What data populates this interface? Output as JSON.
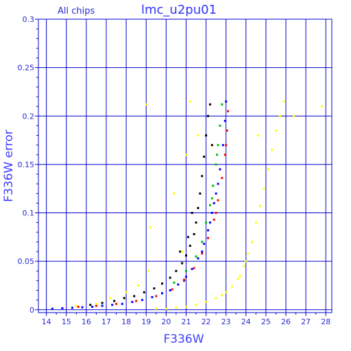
{
  "chart_data": {
    "type": "scatter",
    "title": "lmc_u2pu01",
    "subtitle": "All chips",
    "xlabel": "F336W",
    "ylabel": "F336W error",
    "xlim": [
      13.6,
      28.3
    ],
    "ylim": [
      -0.003,
      0.3
    ],
    "x_ticks": [
      "14",
      "15",
      "16",
      "17",
      "18",
      "19",
      "20",
      "21",
      "22",
      "23",
      "24",
      "25",
      "26",
      "27",
      "28"
    ],
    "y_ticks": [
      "0",
      "0.05",
      "0.1",
      "0.15",
      "0.2",
      "0.25",
      "0.3"
    ],
    "x_tick_values": [
      14,
      15,
      16,
      17,
      18,
      19,
      20,
      21,
      22,
      23,
      24,
      25,
      26,
      27,
      28
    ],
    "y_tick_values": [
      0,
      0.05,
      0.1,
      0.15,
      0.2,
      0.25,
      0.3
    ],
    "grid": true,
    "colors": {
      "grid": "#0000cc",
      "axis": "#0000cc",
      "text": "#2a2ad0",
      "series": [
        "#0000ff",
        "#000000",
        "#ff0000",
        "#00bb00",
        "#ffff00"
      ]
    },
    "series": [
      {
        "color": "#0000ff",
        "points": [
          [
            14.3,
            0.001
          ],
          [
            14.8,
            0.0015
          ],
          [
            15.3,
            0.002
          ],
          [
            15.8,
            0.0025
          ],
          [
            16.3,
            0.003
          ],
          [
            16.8,
            0.004
          ],
          [
            17.3,
            0.005
          ],
          [
            17.8,
            0.006
          ],
          [
            18.3,
            0.008
          ],
          [
            18.8,
            0.01
          ],
          [
            19.3,
            0.013
          ],
          [
            19.8,
            0.017
          ],
          [
            20.2,
            0.02
          ],
          [
            20.6,
            0.026
          ],
          [
            21.0,
            0.034
          ],
          [
            21.3,
            0.042
          ],
          [
            21.6,
            0.053
          ],
          [
            21.9,
            0.068
          ],
          [
            22.1,
            0.082
          ],
          [
            22.3,
            0.1
          ],
          [
            22.5,
            0.12
          ],
          [
            22.7,
            0.145
          ],
          [
            22.85,
            0.17
          ],
          [
            22.95,
            0.195
          ],
          [
            23.0,
            0.215
          ],
          [
            22.2,
            0.09
          ],
          [
            22.6,
            0.13
          ],
          [
            21.8,
            0.06
          ],
          [
            20.9,
            0.03
          ],
          [
            22.4,
            0.11
          ]
        ]
      },
      {
        "color": "#000000",
        "points": [
          [
            16.2,
            0.005
          ],
          [
            16.8,
            0.007
          ],
          [
            17.4,
            0.009
          ],
          [
            17.9,
            0.012
          ],
          [
            18.4,
            0.014
          ],
          [
            18.9,
            0.018
          ],
          [
            19.4,
            0.022
          ],
          [
            19.8,
            0.027
          ],
          [
            20.2,
            0.033
          ],
          [
            20.5,
            0.04
          ],
          [
            20.8,
            0.048
          ],
          [
            21.0,
            0.056
          ],
          [
            21.2,
            0.066
          ],
          [
            21.4,
            0.078
          ],
          [
            21.5,
            0.09
          ],
          [
            21.6,
            0.105
          ],
          [
            21.7,
            0.12
          ],
          [
            21.8,
            0.138
          ],
          [
            21.9,
            0.158
          ],
          [
            22.0,
            0.18
          ],
          [
            22.1,
            0.2
          ],
          [
            22.2,
            0.212
          ],
          [
            21.3,
            0.1
          ],
          [
            21.1,
            0.075
          ],
          [
            22.3,
            0.17
          ],
          [
            20.7,
            0.06
          ]
        ]
      },
      {
        "color": "#ff0000",
        "points": [
          [
            15.6,
            0.003
          ],
          [
            16.5,
            0.004
          ],
          [
            17.5,
            0.006
          ],
          [
            18.5,
            0.009
          ],
          [
            19.5,
            0.014
          ],
          [
            20.3,
            0.021
          ],
          [
            20.9,
            0.031
          ],
          [
            21.4,
            0.043
          ],
          [
            21.8,
            0.058
          ],
          [
            22.1,
            0.074
          ],
          [
            22.4,
            0.093
          ],
          [
            22.6,
            0.113
          ],
          [
            22.8,
            0.136
          ],
          [
            22.95,
            0.16
          ],
          [
            23.05,
            0.185
          ],
          [
            23.1,
            0.205
          ],
          [
            22.5,
            0.1
          ],
          [
            23.0,
            0.17
          ]
        ]
      },
      {
        "color": "#00bb00",
        "points": [
          [
            20.4,
            0.028
          ],
          [
            21.0,
            0.04
          ],
          [
            21.5,
            0.055
          ],
          [
            21.8,
            0.07
          ],
          [
            22.0,
            0.09
          ],
          [
            22.2,
            0.108
          ],
          [
            22.35,
            0.128
          ],
          [
            22.5,
            0.15
          ],
          [
            22.6,
            0.17
          ],
          [
            22.7,
            0.19
          ],
          [
            22.8,
            0.212
          ],
          [
            22.3,
            0.115
          ],
          [
            22.55,
            0.16
          ]
        ]
      },
      {
        "color": "#ffff00",
        "points": [
          [
            15.5,
            0.004
          ],
          [
            16.5,
            0.006
          ],
          [
            17.2,
            0.012
          ],
          [
            18.0,
            0.018
          ],
          [
            18.6,
            0.025
          ],
          [
            19.1,
            0.04
          ],
          [
            19.2,
            0.085
          ],
          [
            19.0,
            0.212
          ],
          [
            19.5,
            0.001
          ],
          [
            20.0,
            0.001
          ],
          [
            20.5,
            0.002
          ],
          [
            21.0,
            0.003
          ],
          [
            21.5,
            0.005
          ],
          [
            22.0,
            0.008
          ],
          [
            22.5,
            0.012
          ],
          [
            23.0,
            0.018
          ],
          [
            23.3,
            0.024
          ],
          [
            23.6,
            0.032
          ],
          [
            23.9,
            0.045
          ],
          [
            24.1,
            0.058
          ],
          [
            24.3,
            0.07
          ],
          [
            24.5,
            0.09
          ],
          [
            24.7,
            0.107
          ],
          [
            24.9,
            0.125
          ],
          [
            25.1,
            0.145
          ],
          [
            25.3,
            0.165
          ],
          [
            25.5,
            0.185
          ],
          [
            25.7,
            0.2
          ],
          [
            25.9,
            0.215
          ],
          [
            26.4,
            0.2
          ],
          [
            20.4,
            0.12
          ],
          [
            21.0,
            0.16
          ],
          [
            21.6,
            0.18
          ],
          [
            20.8,
            0.06
          ],
          [
            21.2,
            0.215
          ],
          [
            27.8,
            0.21
          ],
          [
            24.6,
            0.18
          ],
          [
            23.7,
            0.035
          ],
          [
            22.8,
            0.015
          ],
          [
            24.0,
            0.05
          ]
        ]
      }
    ]
  }
}
